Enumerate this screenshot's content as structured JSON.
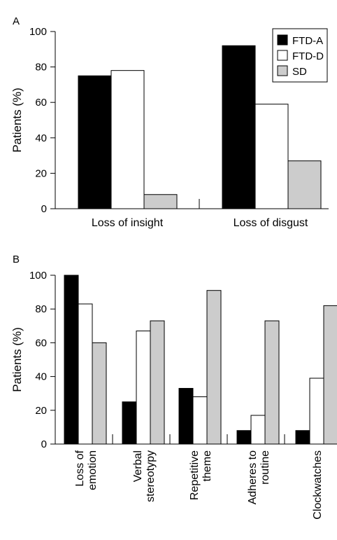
{
  "colors": {
    "FTD-A": "#000000",
    "FTD-D": "#ffffff",
    "SD": "#cccccc"
  },
  "chart_data": [
    {
      "panel_label": "A",
      "type": "bar",
      "ylabel": "Patients (%)",
      "ylim": [
        0,
        100
      ],
      "yticks": [
        0,
        20,
        40,
        60,
        80,
        100
      ],
      "categories": [
        "Loss of insight",
        "Loss of disgust"
      ],
      "series": [
        {
          "name": "FTD-A",
          "values": [
            75,
            92
          ]
        },
        {
          "name": "FTD-D",
          "values": [
            78,
            59
          ]
        },
        {
          "name": "SD",
          "values": [
            8,
            27
          ]
        }
      ],
      "legend": {
        "position": "top-right"
      }
    },
    {
      "panel_label": "B",
      "type": "bar",
      "ylabel": "Patients (%)",
      "ylim": [
        0,
        100
      ],
      "yticks": [
        0,
        20,
        40,
        60,
        80,
        100
      ],
      "categories": [
        [
          "Loss of",
          "emotion"
        ],
        [
          "Verbal",
          "stereotypy"
        ],
        [
          "Repetitive",
          "theme"
        ],
        [
          "Adheres to",
          "routine"
        ],
        [
          "Clockwatches"
        ]
      ],
      "series": [
        {
          "name": "FTD-A",
          "values": [
            100,
            25,
            33,
            8,
            8
          ]
        },
        {
          "name": "FTD-D",
          "values": [
            83,
            67,
            28,
            17,
            39
          ]
        },
        {
          "name": "SD",
          "values": [
            60,
            73,
            91,
            73,
            82
          ]
        }
      ]
    }
  ]
}
